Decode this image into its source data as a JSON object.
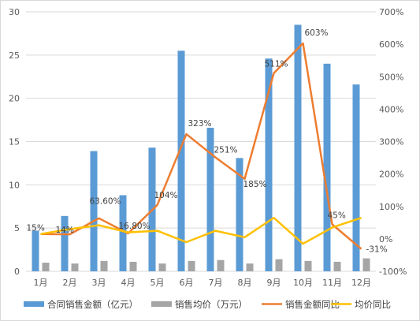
{
  "chart_data": {
    "type": "bar",
    "categories": [
      "1月",
      "2月",
      "3月",
      "4月",
      "5月",
      "6月",
      "7月",
      "8月",
      "9月",
      "10月",
      "11月",
      "12月"
    ],
    "y_left": {
      "min": 0,
      "max": 30,
      "step": 5
    },
    "y_right": {
      "min": -100,
      "max": 700,
      "step": 100,
      "ticks": [
        "-100%",
        "0%",
        "100%",
        "200%",
        "300%",
        "400%",
        "500%",
        "600%",
        "700%"
      ]
    },
    "series": [
      {
        "name": "合同销售金额（亿元）",
        "kind": "bar",
        "axis": "left",
        "color": "#5b9bd5",
        "values": [
          4.7,
          6.4,
          13.9,
          8.8,
          14.3,
          25.5,
          16.6,
          13.1,
          24.6,
          28.5,
          24.0,
          21.6
        ]
      },
      {
        "name": "销售均价（万元）",
        "kind": "bar",
        "axis": "left",
        "color": "#a5a5a5",
        "values": [
          1.0,
          0.9,
          1.2,
          1.1,
          0.9,
          1.2,
          1.3,
          0.9,
          1.4,
          1.2,
          1.1,
          1.5
        ]
      },
      {
        "name": "销售金额同比",
        "kind": "line",
        "axis": "right",
        "color": "#ed7d31",
        "values": [
          15,
          14,
          63.6,
          16.8,
          104,
          323,
          251,
          185,
          511,
          603,
          45,
          -31
        ],
        "labels": [
          "15%",
          "14%",
          "63.60%",
          "16.80%",
          "104%",
          "323%",
          "251%",
          "185%",
          "511%",
          "603%",
          "45%",
          "-31%"
        ]
      },
      {
        "name": "均价同比",
        "kind": "line",
        "axis": "right",
        "color": "#ffc000",
        "values": [
          15,
          30,
          42,
          20,
          25,
          -10,
          25,
          5,
          65,
          -15,
          35,
          65
        ]
      }
    ],
    "legend": "bottom"
  }
}
